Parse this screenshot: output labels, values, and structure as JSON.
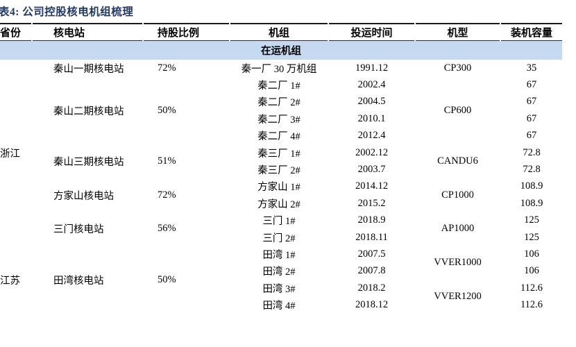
{
  "title": "表4: 公司控股核电机组梳理",
  "table": {
    "headers": [
      "省份",
      "核电站",
      "持股比例",
      "机组",
      "投运时间",
      "机型",
      "装机容量"
    ],
    "section": "在运机组",
    "provinces": [
      {
        "name": "浙江"
      },
      {
        "name": "江苏"
      }
    ],
    "stations": [
      {
        "name": "秦山一期核电站",
        "holding": "72%"
      },
      {
        "name": "秦山二期核电站",
        "holding": "50%"
      },
      {
        "name": "秦山三期核电站",
        "holding": "51%"
      },
      {
        "name": "方家山核电站",
        "holding": "72%"
      },
      {
        "name": "三门核电站",
        "holding": "56%"
      },
      {
        "name": "田湾核电站",
        "holding": "50%"
      }
    ],
    "models": [
      {
        "name": "CP300"
      },
      {
        "name": "CP600"
      },
      {
        "name": "CANDU6"
      },
      {
        "name": "CP1000"
      },
      {
        "name": "AP1000"
      },
      {
        "name": "VVER1000"
      },
      {
        "name": "VVER1200"
      }
    ],
    "units": [
      {
        "unit": "秦一厂 30 万机组",
        "date": "1991.12",
        "capacity": "35"
      },
      {
        "unit": "秦二厂 1#",
        "date": "2002.4",
        "capacity": "67"
      },
      {
        "unit": "秦二厂 2#",
        "date": "2004.5",
        "capacity": "67"
      },
      {
        "unit": "秦二厂 3#",
        "date": "2010.1",
        "capacity": "67"
      },
      {
        "unit": "秦二厂 4#",
        "date": "2012.4",
        "capacity": "67"
      },
      {
        "unit": "秦三厂 1#",
        "date": "2002.12",
        "capacity": "72.8"
      },
      {
        "unit": "秦三厂 2#",
        "date": "2003.7",
        "capacity": "72.8"
      },
      {
        "unit": "方家山 1#",
        "date": "2014.12",
        "capacity": "108.9"
      },
      {
        "unit": "方家山 2#",
        "date": "2015.2",
        "capacity": "108.9"
      },
      {
        "unit": "三门 1#",
        "date": "2018.9",
        "capacity": "125"
      },
      {
        "unit": "三门 2#",
        "date": "2018.11",
        "capacity": "125"
      },
      {
        "unit": "田湾 1#",
        "date": "2007.5",
        "capacity": "106"
      },
      {
        "unit": "田湾 2#",
        "date": "2007.8",
        "capacity": "106"
      },
      {
        "unit": "田湾 3#",
        "date": "2018.2",
        "capacity": "112.6"
      },
      {
        "unit": "田湾 4#",
        "date": "2018.12",
        "capacity": "112.6"
      }
    ],
    "colors": {
      "title": "#1f3864",
      "section_bg": "#c5d9f1",
      "border": "#1a1a1a"
    }
  }
}
